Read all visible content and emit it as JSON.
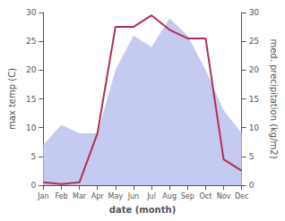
{
  "chart_data": {
    "type": "line",
    "xlabel": "date (month)",
    "ylabel": "max temp (C)",
    "y2label": "med. precipitation (kg/m2)",
    "categories": [
      "Jan",
      "Feb",
      "Mar",
      "Apr",
      "May",
      "Jun",
      "Jul",
      "Aug",
      "Sep",
      "Oct",
      "Nov",
      "Dec"
    ],
    "series": [
      {
        "type": "area",
        "axis": "y2",
        "color": "#c5caf0",
        "values": [
          7,
          10.5,
          9,
          9,
          20,
          26,
          24,
          29,
          26,
          20,
          13,
          9
        ]
      },
      {
        "type": "line",
        "color": "#b03050",
        "values": [
          0.5,
          0.2,
          0.5,
          9.0,
          27.5,
          27.5,
          29.5,
          27.0,
          25.5,
          25.5,
          4.5,
          2.5
        ]
      }
    ],
    "ylim": [
      0,
      30
    ],
    "yticks": [
      0,
      5,
      10,
      15,
      20,
      25,
      30
    ],
    "y2lim": [
      0,
      30
    ],
    "y2ticks": [
      0,
      5,
      10,
      15,
      20,
      25,
      30
    ],
    "grid": false
  }
}
